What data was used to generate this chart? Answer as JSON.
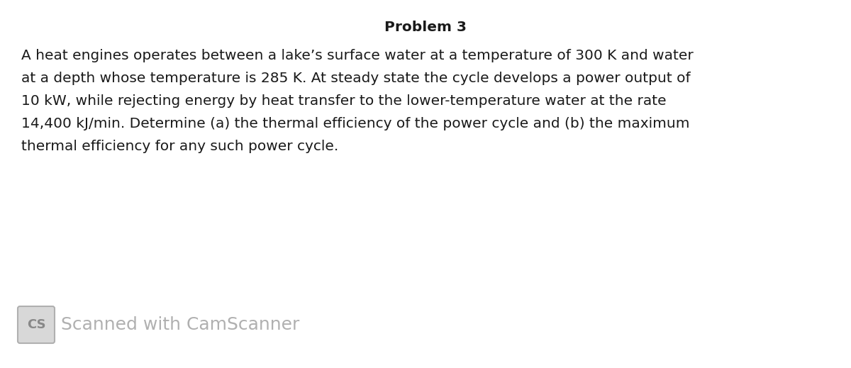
{
  "title": "Problem 3",
  "title_fontsize": 14.5,
  "body_text_lines": [
    "A heat engines operates between a lake’s surface water at a temperature of 300 K and water",
    "at a depth whose temperature is 285 K. At steady state the cycle develops a power output of",
    "10 kW, while rejecting energy by heat transfer to the lower-temperature water at the rate",
    "14,400 kJ/min. Determine (a) the thermal efficiency of the power cycle and (b) the maximum",
    "thermal efficiency for any such power cycle."
  ],
  "body_fontsize": 14.5,
  "watermark_text": "Scanned with CamScanner",
  "watermark_fontsize": 18,
  "watermark_color": "#b0b0b0",
  "cs_box_facecolor": "#d8d8d8",
  "cs_box_edgecolor": "#b0b0b0",
  "cs_text_color": "#888888",
  "background_color": "#ffffff",
  "text_color": "#1a1a1a"
}
